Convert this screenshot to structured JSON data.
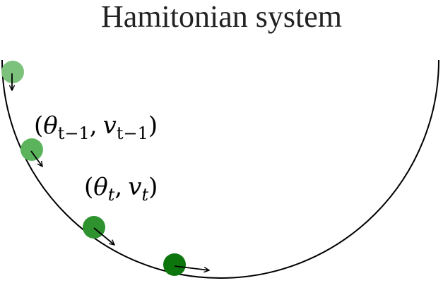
{
  "title": "Hamitonian system",
  "labels": {
    "prev_state": {
      "open": "(",
      "theta": "θ",
      "theta_sub": "t−1",
      "comma": ",",
      "v": "v",
      "v_sub": "t−1",
      "close": ")"
    },
    "curr_state": {
      "open": "(",
      "theta": "θ",
      "theta_sub": "t",
      "comma": ",",
      "v": "v",
      "v_sub": "t",
      "close": ")"
    }
  },
  "colors": {
    "ball_1": "#7cc17c",
    "ball_2": "#5bb35b",
    "ball_3": "#2e922e",
    "ball_4": "#0c760c",
    "curve": "#000000",
    "arrow": "#000000"
  }
}
